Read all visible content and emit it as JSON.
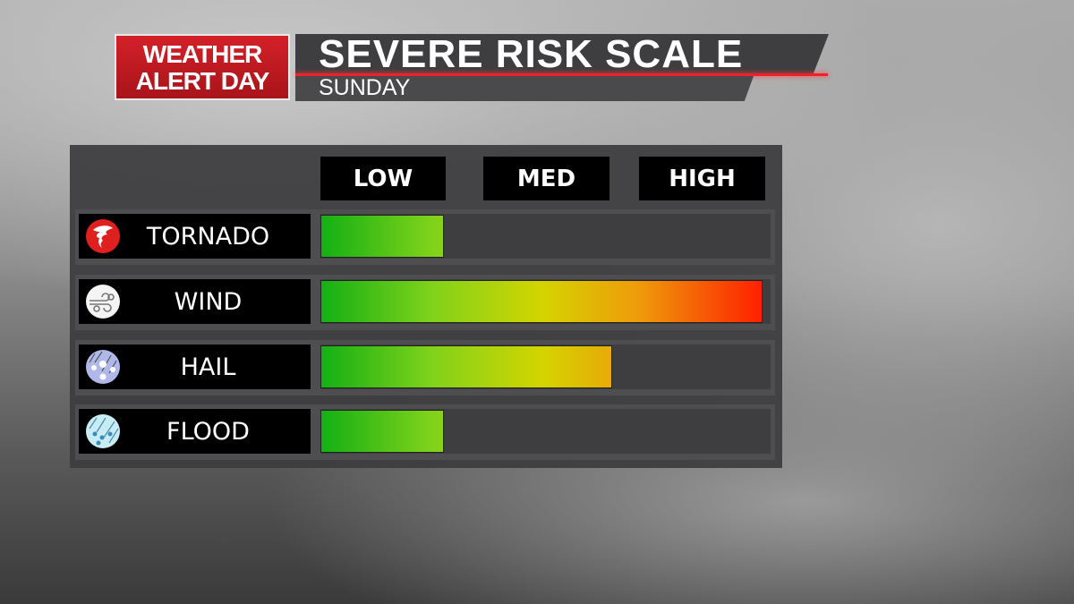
{
  "header": {
    "badge": "WEATHER ALERT DAY",
    "badge_line1": "WEATHER",
    "badge_line2": "ALERT DAY",
    "title": "SEVERE RISK SCALE",
    "subtitle": "SUNDAY"
  },
  "chart_data": {
    "type": "bar",
    "orientation": "horizontal",
    "title": "SEVERE RISK SCALE",
    "subtitle": "SUNDAY",
    "scale_labels": [
      "LOW",
      "MED",
      "HIGH"
    ],
    "categories": [
      "TORNADO",
      "WIND",
      "HAIL",
      "FLOOD"
    ],
    "values": [
      0.28,
      1.0,
      0.66,
      0.28
    ],
    "levels": [
      "LOW",
      "HIGH",
      "MED",
      "LOW"
    ],
    "xlim": [
      0,
      1
    ],
    "color_scale": [
      "#14b014",
      "#80d21a",
      "#d4d400",
      "#ef9a0a",
      "#ff1e00"
    ]
  },
  "icons": [
    "tornado-icon",
    "wind-icon",
    "hail-icon",
    "flood-icon"
  ],
  "colors": {
    "badge": "#d42028",
    "accent_line": "#f0202a"
  }
}
